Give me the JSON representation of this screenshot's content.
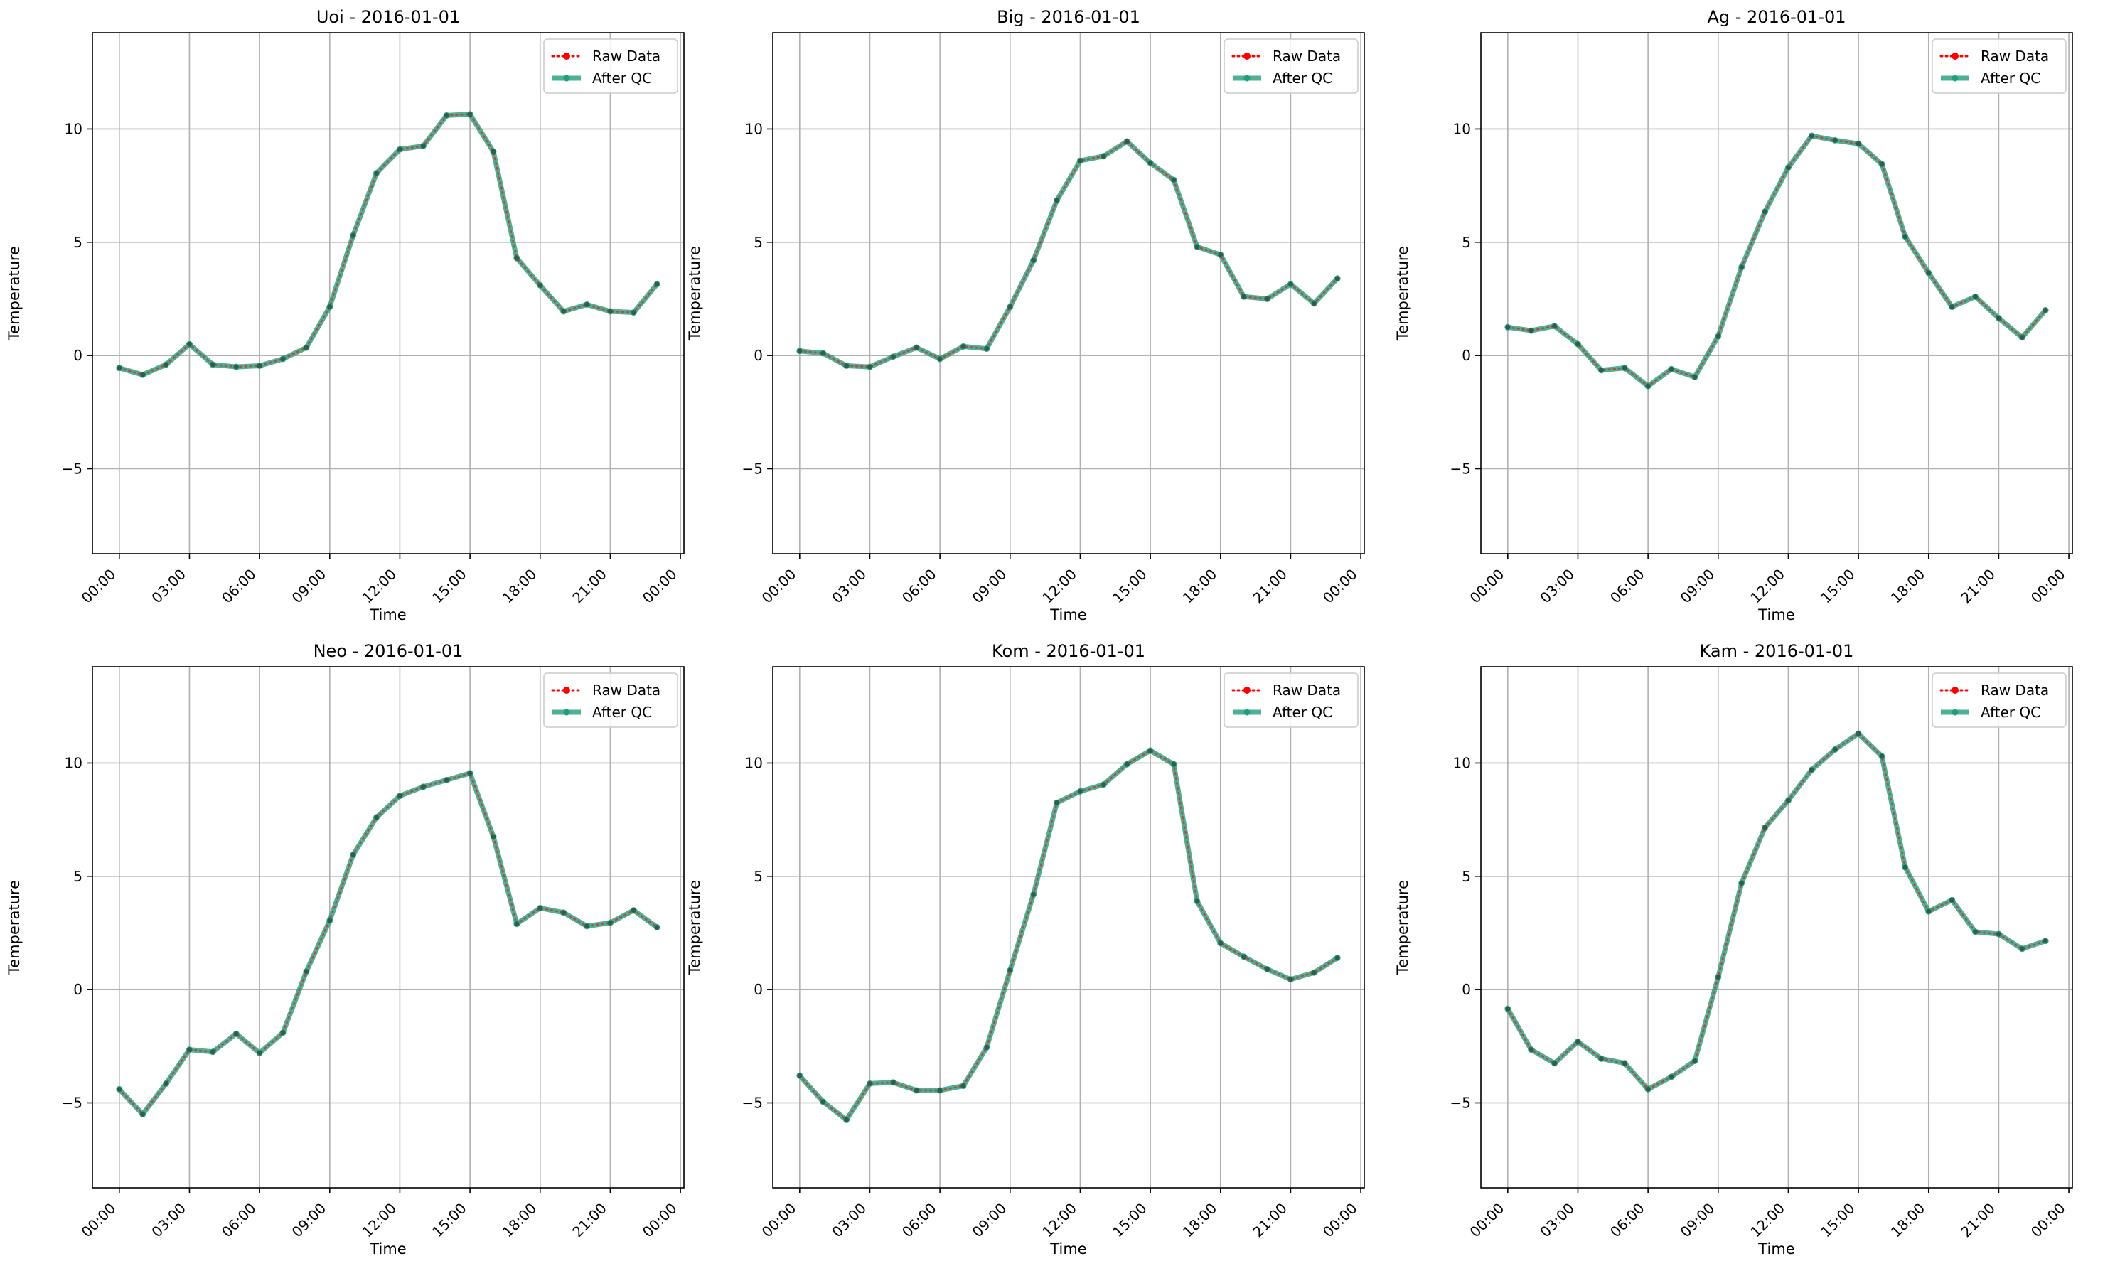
{
  "chart_data": [
    {
      "type": "line",
      "title": "Uoi - 2016-01-01",
      "xlabel": "Time",
      "ylabel": "Temperature",
      "xticks": [
        "00:00",
        "03:00",
        "06:00",
        "09:00",
        "12:00",
        "15:00",
        "18:00",
        "21:00",
        "00:00"
      ],
      "yticks": [
        "−5",
        "0",
        "5",
        "10"
      ],
      "xlim": [
        "2015-12-31 22:51",
        "2016-01-02 00:09"
      ],
      "ylim": [
        -8.75,
        14.25
      ],
      "grid": true,
      "legend_position": "upper-right",
      "x": [
        "00:00",
        "01:00",
        "02:00",
        "03:00",
        "04:00",
        "05:00",
        "06:00",
        "07:00",
        "08:00",
        "09:00",
        "10:00",
        "11:00",
        "12:00",
        "13:00",
        "14:00",
        "15:00",
        "16:00",
        "17:00",
        "18:00",
        "19:00",
        "20:00",
        "21:00",
        "22:00",
        "23:00"
      ],
      "series": [
        {
          "name": "Raw Data",
          "color": "#ff0000",
          "values": [
            -0.55,
            -0.85,
            -0.4,
            0.5,
            -0.4,
            -0.5,
            -0.45,
            -0.15,
            0.35,
            2.15,
            5.3,
            8.05,
            9.1,
            9.25,
            10.6,
            10.65,
            9.0,
            4.3,
            3.1,
            1.95,
            2.25,
            1.95,
            1.9,
            3.15
          ]
        },
        {
          "name": "After QC",
          "color": "#1f9e7a",
          "values": [
            -0.55,
            -0.85,
            -0.4,
            0.5,
            -0.4,
            -0.5,
            -0.45,
            -0.15,
            0.35,
            2.15,
            5.3,
            8.05,
            9.1,
            9.25,
            10.6,
            10.65,
            9.0,
            4.3,
            3.1,
            1.95,
            2.25,
            1.95,
            1.9,
            3.15
          ]
        }
      ]
    },
    {
      "type": "line",
      "title": "Big - 2016-01-01",
      "xlabel": "Time",
      "ylabel": "Temperature",
      "xticks": [
        "00:00",
        "03:00",
        "06:00",
        "09:00",
        "12:00",
        "15:00",
        "18:00",
        "21:00",
        "00:00"
      ],
      "yticks": [
        "−5",
        "0",
        "5",
        "10"
      ],
      "xlim": [
        "2015-12-31 22:51",
        "2016-01-02 00:09"
      ],
      "ylim": [
        -8.75,
        14.25
      ],
      "grid": true,
      "legend_position": "upper-right",
      "x": [
        "00:00",
        "01:00",
        "02:00",
        "03:00",
        "04:00",
        "05:00",
        "06:00",
        "07:00",
        "08:00",
        "09:00",
        "10:00",
        "11:00",
        "12:00",
        "13:00",
        "14:00",
        "15:00",
        "16:00",
        "17:00",
        "18:00",
        "19:00",
        "20:00",
        "21:00",
        "22:00",
        "23:00"
      ],
      "series": [
        {
          "name": "Raw Data",
          "color": "#ff0000",
          "values": [
            0.2,
            0.1,
            -0.45,
            -0.5,
            -0.05,
            0.35,
            -0.15,
            0.4,
            0.3,
            2.15,
            4.2,
            6.85,
            8.6,
            8.8,
            9.45,
            8.5,
            7.75,
            4.8,
            4.45,
            2.6,
            2.5,
            3.15,
            2.3,
            3.4
          ]
        },
        {
          "name": "After QC",
          "color": "#1f9e7a",
          "values": [
            0.2,
            0.1,
            -0.45,
            -0.5,
            -0.05,
            0.35,
            -0.15,
            0.4,
            0.3,
            2.15,
            4.2,
            6.85,
            8.6,
            8.8,
            9.45,
            8.5,
            7.75,
            4.8,
            4.45,
            2.6,
            2.5,
            3.15,
            2.3,
            3.4
          ]
        }
      ]
    },
    {
      "type": "line",
      "title": "Ag - 2016-01-01",
      "xlabel": "Time",
      "ylabel": "Temperature",
      "xticks": [
        "00:00",
        "03:00",
        "06:00",
        "09:00",
        "12:00",
        "15:00",
        "18:00",
        "21:00",
        "00:00"
      ],
      "yticks": [
        "−5",
        "0",
        "5",
        "10"
      ],
      "xlim": [
        "2015-12-31 22:51",
        "2016-01-02 00:09"
      ],
      "ylim": [
        -8.75,
        14.25
      ],
      "grid": true,
      "legend_position": "upper-right",
      "x": [
        "00:00",
        "01:00",
        "02:00",
        "03:00",
        "04:00",
        "05:00",
        "06:00",
        "07:00",
        "08:00",
        "09:00",
        "10:00",
        "11:00",
        "12:00",
        "13:00",
        "14:00",
        "15:00",
        "16:00",
        "17:00",
        "18:00",
        "19:00",
        "20:00",
        "21:00",
        "22:00",
        "23:00"
      ],
      "series": [
        {
          "name": "Raw Data",
          "color": "#ff0000",
          "values": [
            1.25,
            1.1,
            1.3,
            0.5,
            -0.65,
            -0.55,
            -1.35,
            -0.6,
            -0.95,
            0.85,
            3.9,
            6.35,
            8.3,
            9.7,
            9.5,
            9.35,
            8.45,
            5.25,
            3.65,
            2.15,
            2.6,
            1.65,
            0.8,
            2.0
          ]
        },
        {
          "name": "After QC",
          "color": "#1f9e7a",
          "values": [
            1.25,
            1.1,
            1.3,
            0.5,
            -0.65,
            -0.55,
            -1.35,
            -0.6,
            -0.95,
            0.85,
            3.9,
            6.35,
            8.3,
            9.7,
            9.5,
            9.35,
            8.45,
            5.25,
            3.65,
            2.15,
            2.6,
            1.65,
            0.8,
            2.0
          ]
        }
      ]
    },
    {
      "type": "line",
      "title": "Neo - 2016-01-01",
      "xlabel": "Time",
      "ylabel": "Temperature",
      "xticks": [
        "00:00",
        "03:00",
        "06:00",
        "09:00",
        "12:00",
        "15:00",
        "18:00",
        "21:00",
        "00:00"
      ],
      "yticks": [
        "−5",
        "0",
        "5",
        "10"
      ],
      "xlim": [
        "2015-12-31 22:51",
        "2016-01-02 00:09"
      ],
      "ylim": [
        -8.75,
        14.25
      ],
      "grid": true,
      "legend_position": "upper-right",
      "x": [
        "00:00",
        "01:00",
        "02:00",
        "03:00",
        "04:00",
        "05:00",
        "06:00",
        "07:00",
        "08:00",
        "09:00",
        "10:00",
        "11:00",
        "12:00",
        "13:00",
        "14:00",
        "15:00",
        "16:00",
        "17:00",
        "18:00",
        "19:00",
        "20:00",
        "21:00",
        "22:00",
        "23:00"
      ],
      "series": [
        {
          "name": "Raw Data",
          "color": "#ff0000",
          "values": [
            -4.4,
            -5.5,
            -4.15,
            -2.65,
            -2.75,
            -1.95,
            -2.8,
            -1.9,
            0.8,
            3.05,
            5.95,
            7.6,
            8.55,
            8.95,
            9.25,
            9.55,
            6.75,
            2.9,
            3.6,
            3.4,
            2.8,
            2.95,
            3.5,
            2.75
          ]
        },
        {
          "name": "After QC",
          "color": "#1f9e7a",
          "values": [
            -4.4,
            -5.5,
            -4.15,
            -2.65,
            -2.75,
            -1.95,
            -2.8,
            -1.9,
            0.8,
            3.05,
            5.95,
            7.6,
            8.55,
            8.95,
            9.25,
            9.55,
            6.75,
            2.9,
            3.6,
            3.4,
            2.8,
            2.95,
            3.5,
            2.75
          ]
        }
      ]
    },
    {
      "type": "line",
      "title": "Kom - 2016-01-01",
      "xlabel": "Time",
      "ylabel": "Temperature",
      "xticks": [
        "00:00",
        "03:00",
        "06:00",
        "09:00",
        "12:00",
        "15:00",
        "18:00",
        "21:00",
        "00:00"
      ],
      "yticks": [
        "−5",
        "0",
        "5",
        "10"
      ],
      "xlim": [
        "2015-12-31 22:51",
        "2016-01-02 00:09"
      ],
      "ylim": [
        -8.75,
        14.25
      ],
      "grid": true,
      "legend_position": "upper-right",
      "x": [
        "00:00",
        "01:00",
        "02:00",
        "03:00",
        "04:00",
        "05:00",
        "06:00",
        "07:00",
        "08:00",
        "09:00",
        "10:00",
        "11:00",
        "12:00",
        "13:00",
        "14:00",
        "15:00",
        "16:00",
        "17:00",
        "18:00",
        "19:00",
        "20:00",
        "21:00",
        "22:00",
        "23:00"
      ],
      "series": [
        {
          "name": "Raw Data",
          "color": "#ff0000",
          "values": [
            -3.8,
            -4.95,
            -5.75,
            -4.15,
            -4.1,
            -4.45,
            -4.45,
            -4.25,
            -2.55,
            0.85,
            4.2,
            8.25,
            8.75,
            9.05,
            9.95,
            10.55,
            9.95,
            3.9,
            2.05,
            1.45,
            0.9,
            0.45,
            0.75,
            1.4
          ]
        },
        {
          "name": "After QC",
          "color": "#1f9e7a",
          "values": [
            -3.8,
            -4.95,
            -5.75,
            -4.15,
            -4.1,
            -4.45,
            -4.45,
            -4.25,
            -2.55,
            0.85,
            4.2,
            8.25,
            8.75,
            9.05,
            9.95,
            10.55,
            9.95,
            3.9,
            2.05,
            1.45,
            0.9,
            0.45,
            0.75,
            1.4
          ]
        }
      ]
    },
    {
      "type": "line",
      "title": "Kam - 2016-01-01",
      "xlabel": "Time",
      "ylabel": "Temperature",
      "xticks": [
        "00:00",
        "03:00",
        "06:00",
        "09:00",
        "12:00",
        "15:00",
        "18:00",
        "21:00",
        "00:00"
      ],
      "yticks": [
        "−5",
        "0",
        "5",
        "10"
      ],
      "xlim": [
        "2015-12-31 22:51",
        "2016-01-02 00:09"
      ],
      "ylim": [
        -8.75,
        14.25
      ],
      "grid": true,
      "legend_position": "upper-right",
      "x": [
        "00:00",
        "01:00",
        "02:00",
        "03:00",
        "04:00",
        "05:00",
        "06:00",
        "07:00",
        "08:00",
        "09:00",
        "10:00",
        "11:00",
        "12:00",
        "13:00",
        "14:00",
        "15:00",
        "16:00",
        "17:00",
        "18:00",
        "19:00",
        "20:00",
        "21:00",
        "22:00",
        "23:00"
      ],
      "series": [
        {
          "name": "Raw Data",
          "color": "#ff0000",
          "values": [
            -0.85,
            -2.65,
            -3.25,
            -2.3,
            -3.05,
            -3.25,
            -4.4,
            -3.85,
            -3.15,
            0.55,
            4.7,
            7.15,
            8.35,
            9.7,
            10.6,
            11.3,
            10.3,
            5.4,
            3.45,
            3.95,
            2.55,
            2.45,
            1.8,
            2.15
          ]
        },
        {
          "name": "After QC",
          "color": "#1f9e7a",
          "values": [
            -0.85,
            -2.65,
            -3.25,
            -2.3,
            -3.05,
            -3.25,
            -4.4,
            -3.85,
            -3.15,
            0.55,
            4.7,
            7.15,
            8.35,
            9.7,
            10.6,
            11.3,
            10.3,
            5.4,
            3.45,
            3.95,
            2.55,
            2.45,
            1.8,
            2.15
          ]
        }
      ]
    }
  ]
}
